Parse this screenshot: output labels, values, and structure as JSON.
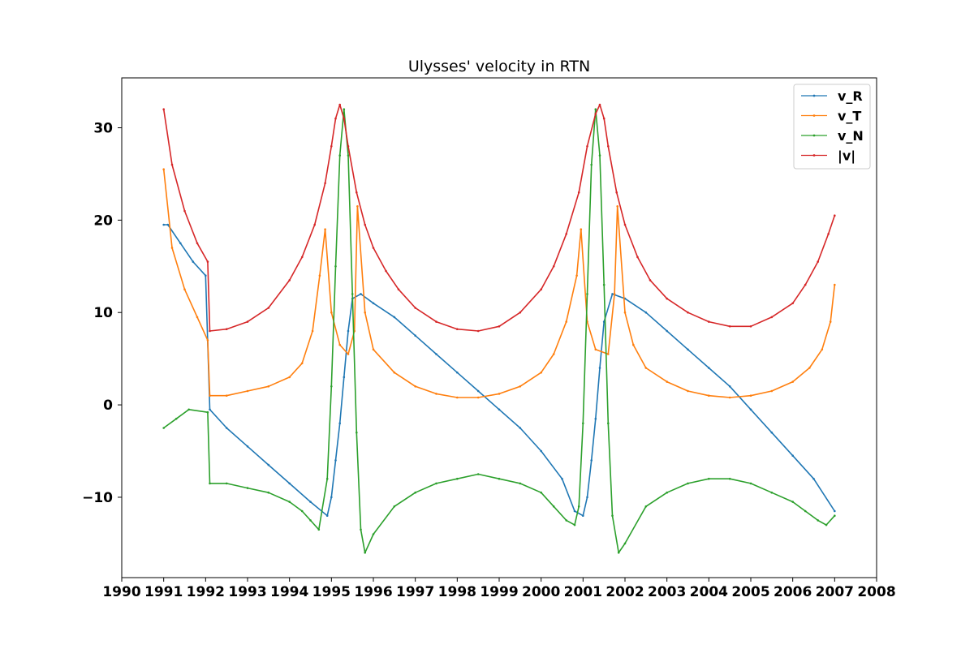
{
  "chart_data": {
    "type": "line",
    "title": "Ulysses' velocity in RTN",
    "xlabel": "",
    "ylabel": "",
    "xlim": [
      1990,
      2008
    ],
    "ylim": [
      -18.7,
      35.4
    ],
    "x_ticks": [
      "1990",
      "1991",
      "1992",
      "1993",
      "1994",
      "1995",
      "1996",
      "1997",
      "1998",
      "1999",
      "2000",
      "2001",
      "2002",
      "2003",
      "2004",
      "2005",
      "2006",
      "2007",
      "2008"
    ],
    "y_ticks": [
      "−10",
      "0",
      "10",
      "20",
      "30"
    ],
    "y_tick_values": [
      -10,
      0,
      10,
      20,
      30
    ],
    "grid": false,
    "legend_position": "top-right",
    "series": [
      {
        "name": "v_R",
        "color": "#1f77b4",
        "x": [
          1991.0,
          1991.1,
          1991.4,
          1991.7,
          1992.0,
          1992.1,
          1992.5,
          1993.0,
          1993.5,
          1994.0,
          1994.5,
          1994.9,
          1995.0,
          1995.1,
          1995.2,
          1995.3,
          1995.4,
          1995.5,
          1995.7,
          1996.0,
          1996.5,
          1997.0,
          1997.5,
          1998.0,
          1998.5,
          1999.0,
          1999.5,
          2000.0,
          2000.5,
          2000.8,
          2001.0,
          2001.1,
          2001.2,
          2001.3,
          2001.4,
          2001.5,
          2001.7,
          2002.0,
          2002.5,
          2003.0,
          2003.5,
          2004.0,
          2004.5,
          2005.0,
          2005.5,
          2006.0,
          2006.5,
          2007.0
        ],
        "y": [
          19.5,
          19.5,
          17.5,
          15.5,
          14.0,
          -0.5,
          -2.5,
          -4.5,
          -6.5,
          -8.5,
          -10.5,
          -12.0,
          -10.0,
          -6.0,
          -2.0,
          3.0,
          8.0,
          11.5,
          12.0,
          11.0,
          9.5,
          7.5,
          5.5,
          3.5,
          1.5,
          -0.5,
          -2.5,
          -5.0,
          -8.0,
          -11.5,
          -12.0,
          -10.0,
          -6.0,
          -1.5,
          4.0,
          9.0,
          12.0,
          11.5,
          10.0,
          8.0,
          6.0,
          4.0,
          2.0,
          -0.5,
          -3.0,
          -5.5,
          -8.0,
          -11.5
        ]
      },
      {
        "name": "v_T",
        "color": "#ff7f0e",
        "x": [
          1991.0,
          1991.2,
          1991.5,
          1991.8,
          1992.05,
          1992.1,
          1992.5,
          1993.0,
          1993.5,
          1994.0,
          1994.3,
          1994.55,
          1994.72,
          1994.85,
          1995.0,
          1995.2,
          1995.4,
          1995.55,
          1995.62,
          1995.8,
          1996.0,
          1996.5,
          1997.0,
          1997.5,
          1998.0,
          1998.5,
          1999.0,
          1999.5,
          2000.0,
          2000.3,
          2000.6,
          2000.85,
          2000.95,
          2001.1,
          2001.3,
          2001.6,
          2001.75,
          2001.82,
          2002.0,
          2002.2,
          2002.5,
          2003.0,
          2003.5,
          2004.0,
          2004.5,
          2005.0,
          2005.5,
          2006.0,
          2006.4,
          2006.7,
          2006.9,
          2007.0
        ],
        "y": [
          25.5,
          17.0,
          12.5,
          9.5,
          7.0,
          1.0,
          1.0,
          1.5,
          2.0,
          3.0,
          4.5,
          8.0,
          14.0,
          19.0,
          10.0,
          6.5,
          5.5,
          8.0,
          21.5,
          10.0,
          6.0,
          3.5,
          2.0,
          1.2,
          0.8,
          0.8,
          1.2,
          2.0,
          3.5,
          5.5,
          9.0,
          14.0,
          19.0,
          9.0,
          6.0,
          5.5,
          12.0,
          21.5,
          10.0,
          6.5,
          4.0,
          2.5,
          1.5,
          1.0,
          0.8,
          1.0,
          1.5,
          2.5,
          4.0,
          6.0,
          9.0,
          13.0
        ]
      },
      {
        "name": "v_N",
        "color": "#2ca02c",
        "x": [
          1991.0,
          1991.3,
          1991.6,
          1992.05,
          1992.1,
          1992.5,
          1993.0,
          1993.5,
          1994.0,
          1994.3,
          1994.5,
          1994.7,
          1994.9,
          1995.0,
          1995.1,
          1995.2,
          1995.3,
          1995.4,
          1995.5,
          1995.6,
          1995.7,
          1995.8,
          1996.0,
          1996.5,
          1997.0,
          1997.5,
          1998.0,
          1998.5,
          1999.0,
          1999.5,
          2000.0,
          2000.3,
          2000.6,
          2000.8,
          2000.9,
          2001.0,
          2001.1,
          2001.2,
          2001.3,
          2001.4,
          2001.5,
          2001.6,
          2001.7,
          2001.85,
          2002.0,
          2002.5,
          2003.0,
          2003.5,
          2004.0,
          2004.5,
          2005.0,
          2005.5,
          2006.0,
          2006.3,
          2006.6,
          2006.8,
          2007.0
        ],
        "y": [
          -2.5,
          -1.5,
          -0.5,
          -0.8,
          -8.5,
          -8.5,
          -9.0,
          -9.5,
          -10.5,
          -11.5,
          -12.5,
          -13.5,
          -8.0,
          2.0,
          15.0,
          27.0,
          32.0,
          27.0,
          12.0,
          -3.0,
          -13.5,
          -16.0,
          -14.0,
          -11.0,
          -9.5,
          -8.5,
          -8.0,
          -7.5,
          -8.0,
          -8.5,
          -9.5,
          -11.0,
          -12.5,
          -13.0,
          -11.0,
          -2.0,
          12.0,
          26.0,
          32.0,
          27.0,
          13.0,
          -2.0,
          -12.0,
          -16.0,
          -15.0,
          -11.0,
          -9.5,
          -8.5,
          -8.0,
          -8.0,
          -8.5,
          -9.5,
          -10.5,
          -11.5,
          -12.5,
          -13.0,
          -12.0
        ]
      },
      {
        "name": "|v|",
        "color": "#d62728",
        "x": [
          1991.0,
          1991.2,
          1991.5,
          1991.8,
          1992.05,
          1992.1,
          1992.5,
          1993.0,
          1993.5,
          1994.0,
          1994.3,
          1994.6,
          1994.85,
          1995.0,
          1995.1,
          1995.2,
          1995.3,
          1995.4,
          1995.6,
          1995.8,
          1996.0,
          1996.3,
          1996.6,
          1997.0,
          1997.5,
          1998.0,
          1998.5,
          1999.0,
          1999.5,
          2000.0,
          2000.3,
          2000.6,
          2000.9,
          2001.1,
          2001.3,
          2001.4,
          2001.5,
          2001.6,
          2001.8,
          2002.0,
          2002.3,
          2002.6,
          2003.0,
          2003.5,
          2004.0,
          2004.5,
          2005.0,
          2005.5,
          2006.0,
          2006.3,
          2006.6,
          2006.85,
          2007.0
        ],
        "y": [
          32.0,
          26.0,
          21.0,
          17.5,
          15.5,
          8.0,
          8.2,
          9.0,
          10.5,
          13.5,
          16.0,
          19.5,
          24.0,
          28.0,
          31.0,
          32.5,
          31.0,
          28.0,
          23.0,
          19.5,
          17.0,
          14.5,
          12.5,
          10.5,
          9.0,
          8.2,
          8.0,
          8.5,
          10.0,
          12.5,
          15.0,
          18.5,
          23.0,
          28.0,
          31.5,
          32.5,
          31.0,
          28.0,
          23.0,
          19.5,
          16.0,
          13.5,
          11.5,
          10.0,
          9.0,
          8.5,
          8.5,
          9.5,
          11.0,
          13.0,
          15.5,
          18.5,
          20.5
        ]
      }
    ]
  }
}
